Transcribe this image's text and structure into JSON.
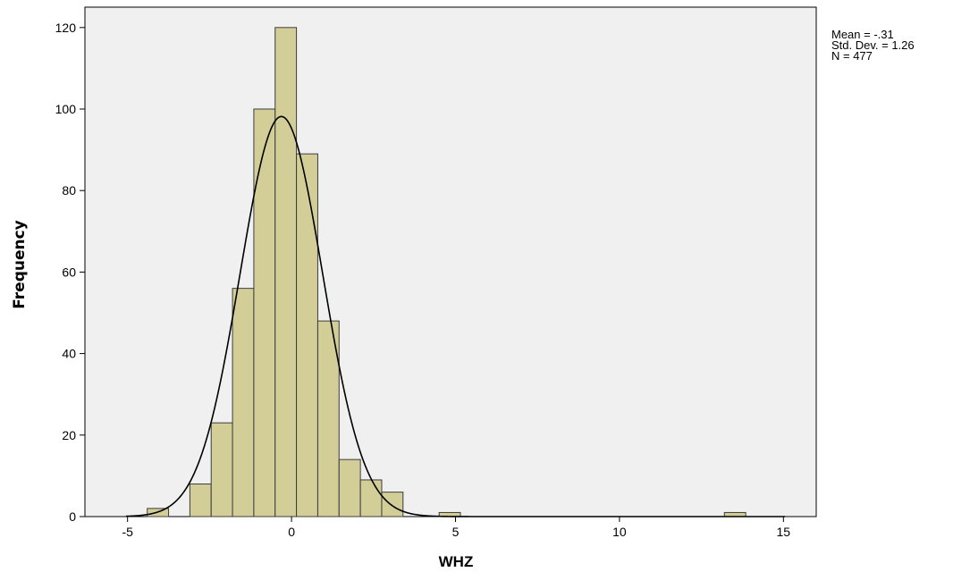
{
  "chart_data": {
    "type": "bar",
    "subtype": "histogram-with-normal-curve",
    "xlabel": "WHZ",
    "ylabel": "Frequency",
    "xlim": [
      -6.3,
      16.0
    ],
    "ylim": [
      0,
      125
    ],
    "xticks": [
      -5,
      0,
      5,
      10,
      15
    ],
    "yticks": [
      0,
      20,
      40,
      60,
      80,
      100,
      120
    ],
    "bin_width": 0.65,
    "bins": [
      {
        "x0": -4.4,
        "x1": -3.75,
        "count": 2
      },
      {
        "x0": -3.1,
        "x1": -2.45,
        "count": 8
      },
      {
        "x0": -2.45,
        "x1": -1.8,
        "count": 23
      },
      {
        "x0": -1.8,
        "x1": -1.15,
        "count": 56
      },
      {
        "x0": -1.15,
        "x1": -0.5,
        "count": 100
      },
      {
        "x0": -0.5,
        "x1": 0.15,
        "count": 120
      },
      {
        "x0": 0.15,
        "x1": 0.8,
        "count": 89
      },
      {
        "x0": 0.8,
        "x1": 1.45,
        "count": 48
      },
      {
        "x0": 1.45,
        "x1": 2.1,
        "count": 14
      },
      {
        "x0": 2.1,
        "x1": 2.75,
        "count": 9
      },
      {
        "x0": 2.75,
        "x1": 3.4,
        "count": 6
      },
      {
        "x0": 4.5,
        "x1": 5.15,
        "count": 1
      },
      {
        "x0": 13.2,
        "x1": 13.85,
        "count": 1
      }
    ],
    "normal_curve": {
      "mean": -0.31,
      "sd": 1.26,
      "n": 477
    },
    "grid": false,
    "legend": "right"
  },
  "stats": {
    "mean_text": "Mean = -.31",
    "sd_text": "Std. Dev. = 1.26",
    "n_text": "N = 477"
  },
  "colors": {
    "plot_bg": "#f0f0f0",
    "bar_fill": "#d3ce97",
    "bar_stroke": "#3c3c3c",
    "curve": "#000000"
  }
}
